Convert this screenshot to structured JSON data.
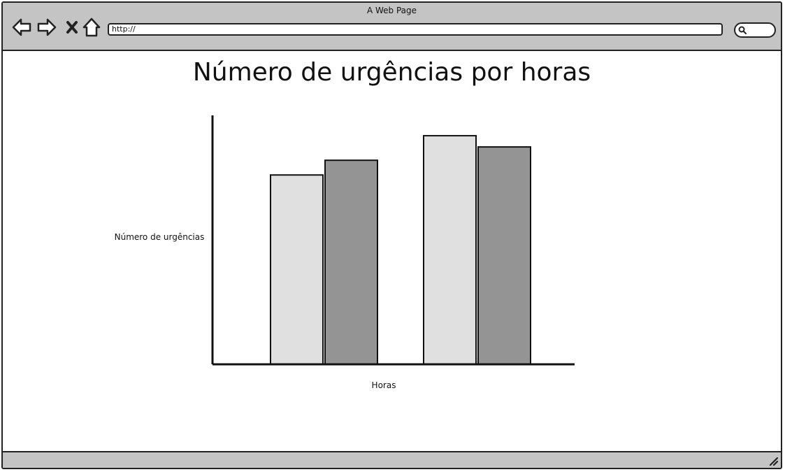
{
  "window": {
    "title": "A Web Page"
  },
  "toolbar": {
    "back_icon": "back-arrow-icon",
    "forward_icon": "forward-arrow-icon",
    "stop_icon": "close-icon",
    "home_icon": "home-icon",
    "address_value": "http://",
    "search_icon": "search-icon"
  },
  "page": {
    "title": "Número de urgências por horas"
  },
  "chart_data": {
    "type": "bar",
    "title": "Número de urgências por horas",
    "xlabel": "Horas",
    "ylabel": "Número de urgências",
    "categories": [
      "",
      ""
    ],
    "series": [
      {
        "color": "#e0e0e0",
        "values": [
          270,
          326
        ]
      },
      {
        "color": "#949494",
        "values": [
          291,
          310
        ]
      }
    ],
    "ylim": [
      0,
      355
    ],
    "grid": false,
    "legend": "none"
  },
  "statusbar": {
    "grip_icon": "resize-grip-icon"
  }
}
